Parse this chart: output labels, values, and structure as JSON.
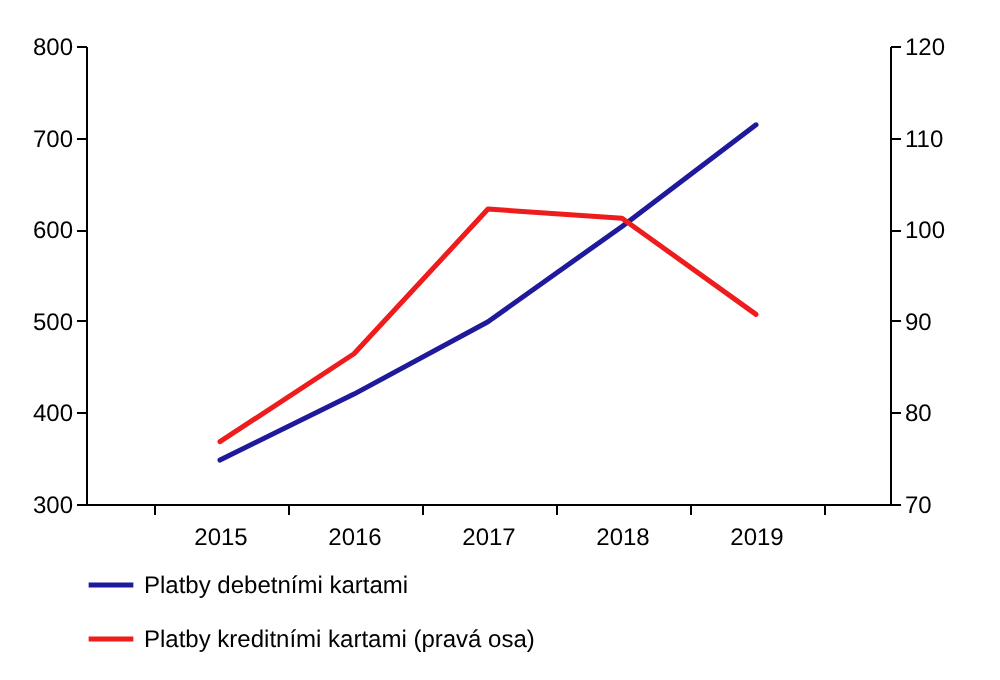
{
  "chart_data": {
    "type": "line",
    "categories": [
      "2015",
      "2016",
      "2017",
      "2018",
      "2019"
    ],
    "series": [
      {
        "name": "Platby debetními kartami",
        "color": "#1f1a9c",
        "values": [
          348,
          420,
          499,
          603,
          714
        ]
      },
      {
        "name": "Platby kreditními kartami (pravá osa)",
        "color": "#ee1c1c",
        "values": [
          76.8,
          86.4,
          102.2,
          101.2,
          90.7
        ],
        "axis": "y2"
      }
    ],
    "ylim": [
      300,
      800
    ],
    "yticks": [
      300,
      400,
      500,
      600,
      700,
      800
    ],
    "y2lim": [
      70,
      120
    ],
    "y2ticks": [
      70,
      80,
      90,
      100,
      110,
      120
    ],
    "grid": false,
    "legend": "bottom"
  }
}
